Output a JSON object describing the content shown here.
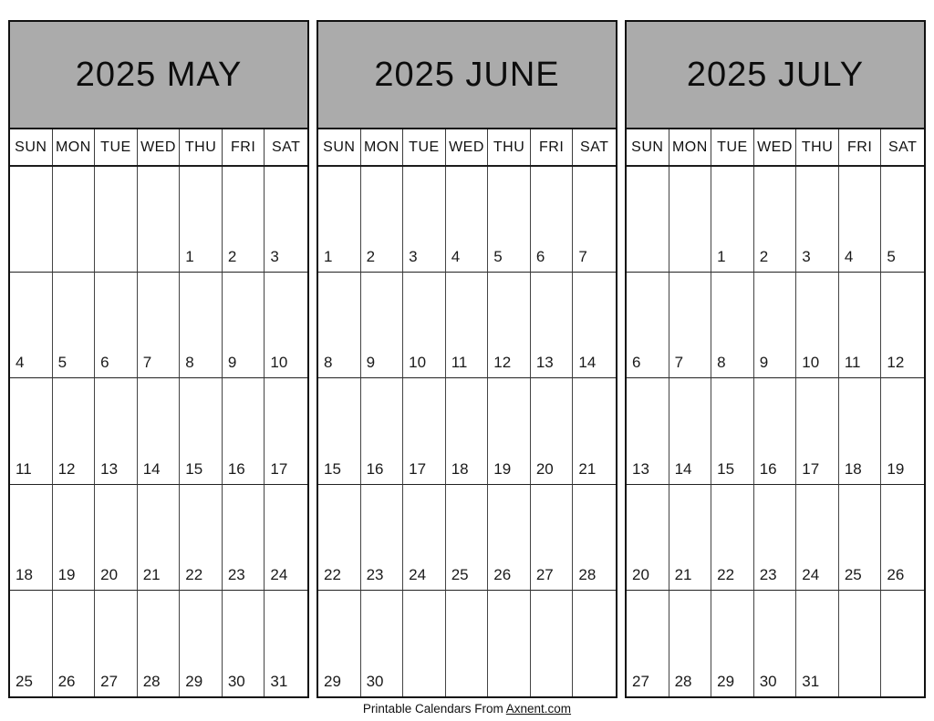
{
  "page": {
    "footer_prefix": "Printable Calendars From",
    "footer_link": "Axnent.com"
  },
  "colors": {
    "background": "#ffffff",
    "title_bar_bg": "#ababab",
    "outer_border": "#111111",
    "inner_border": "#444444",
    "text": "#111111"
  },
  "day_headers": [
    "SUN",
    "MON",
    "TUE",
    "WED",
    "THU",
    "FRI",
    "SAT"
  ],
  "calendars": [
    {
      "id": "may",
      "title": "2025 MAY",
      "weeks": [
        [
          "",
          "",
          "",
          "",
          "1",
          "2",
          "3"
        ],
        [
          "4",
          "5",
          "6",
          "7",
          "8",
          "9",
          "10"
        ],
        [
          "11",
          "12",
          "13",
          "14",
          "15",
          "16",
          "17"
        ],
        [
          "18",
          "19",
          "20",
          "21",
          "22",
          "23",
          "24"
        ],
        [
          "25",
          "26",
          "27",
          "28",
          "29",
          "30",
          "31"
        ]
      ]
    },
    {
      "id": "june",
      "title": "2025 JUNE",
      "weeks": [
        [
          "1",
          "2",
          "3",
          "4",
          "5",
          "6",
          "7"
        ],
        [
          "8",
          "9",
          "10",
          "11",
          "12",
          "13",
          "14"
        ],
        [
          "15",
          "16",
          "17",
          "18",
          "19",
          "20",
          "21"
        ],
        [
          "22",
          "23",
          "24",
          "25",
          "26",
          "27",
          "28"
        ],
        [
          "29",
          "30",
          "",
          "",
          "",
          "",
          ""
        ]
      ]
    },
    {
      "id": "july",
      "title": "2025 JULY",
      "weeks": [
        [
          "",
          "",
          "1",
          "2",
          "3",
          "4",
          "5"
        ],
        [
          "6",
          "7",
          "8",
          "9",
          "10",
          "11",
          "12"
        ],
        [
          "13",
          "14",
          "15",
          "16",
          "17",
          "18",
          "19"
        ],
        [
          "20",
          "21",
          "22",
          "23",
          "24",
          "25",
          "26"
        ],
        [
          "27",
          "28",
          "29",
          "30",
          "31",
          "",
          ""
        ]
      ]
    }
  ]
}
